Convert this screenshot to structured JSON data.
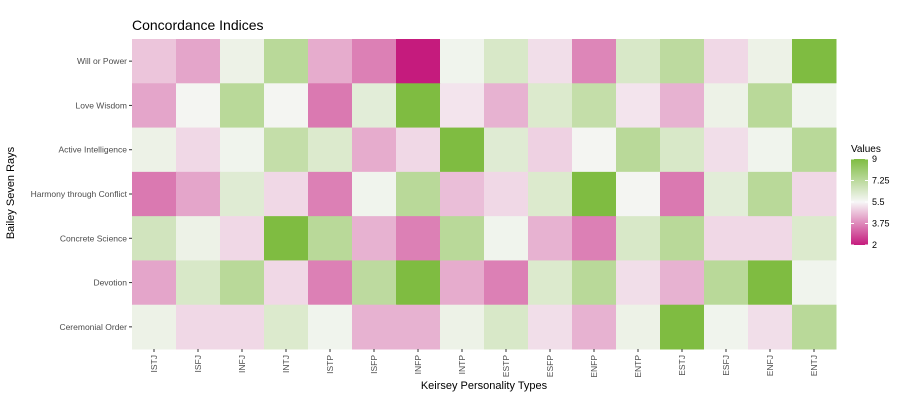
{
  "chart_data": {
    "type": "heatmap",
    "title": "Concordance Indices",
    "xlabel": "Keirsey Personality Types",
    "ylabel": "Bailey Seven Rays",
    "x_categories": [
      "ISTJ",
      "ISFJ",
      "INFJ",
      "INTJ",
      "ISTP",
      "ISFP",
      "INFP",
      "INTP",
      "ESTP",
      "ESFP",
      "ENFP",
      "ENTP",
      "ESTJ",
      "ESFJ",
      "ENFJ",
      "ENTJ"
    ],
    "y_categories": [
      "Will or Power",
      "Love Wisdom",
      "Active Intelligence",
      "Harmony through Conflict",
      "Concrete Science",
      "Devotion",
      "Ceremonial Order"
    ],
    "values": [
      [
        4.7,
        4.2,
        5.8,
        7.3,
        4.3,
        3.6,
        2.0,
        5.7,
        6.4,
        5.1,
        3.7,
        6.4,
        7.2,
        5.0,
        5.8,
        9.0
      ],
      [
        4.2,
        5.6,
        7.3,
        5.6,
        3.5,
        6.1,
        9.0,
        5.2,
        4.4,
        6.3,
        7.0,
        5.2,
        4.4,
        5.8,
        7.3,
        5.7
      ],
      [
        5.8,
        5.0,
        5.7,
        7.0,
        6.3,
        4.3,
        5.0,
        9.0,
        6.2,
        4.9,
        5.6,
        7.3,
        6.4,
        5.1,
        5.7,
        7.3
      ],
      [
        3.5,
        4.2,
        6.2,
        5.0,
        3.6,
        5.7,
        7.3,
        4.6,
        5.0,
        6.3,
        9.0,
        5.6,
        3.5,
        6.1,
        7.3,
        5.0
      ],
      [
        6.6,
        5.8,
        5.0,
        9.0,
        7.3,
        4.4,
        3.6,
        7.3,
        5.7,
        4.4,
        3.6,
        6.4,
        7.3,
        5.0,
        5.0,
        6.3
      ],
      [
        4.2,
        6.4,
        7.3,
        5.0,
        3.6,
        7.2,
        9.0,
        4.3,
        3.6,
        6.3,
        7.3,
        5.1,
        4.4,
        7.3,
        9.0,
        5.7
      ],
      [
        5.8,
        5.0,
        5.0,
        6.3,
        5.7,
        4.4,
        4.4,
        5.8,
        6.4,
        5.1,
        4.4,
        5.8,
        9.0,
        5.7,
        5.1,
        7.3
      ]
    ],
    "legend_title": "Values",
    "legend_labels": [
      "9",
      "7.25",
      "5.5",
      "3.75",
      "2"
    ],
    "legend_values": [
      9,
      7.25,
      5.5,
      3.75,
      2
    ],
    "value_range": [
      2,
      9
    ],
    "colors": {
      "low": "#c51b7d",
      "mid": "#f7f7f7",
      "high": "#7fbc41"
    },
    "legend_position": "right",
    "grid": false
  }
}
